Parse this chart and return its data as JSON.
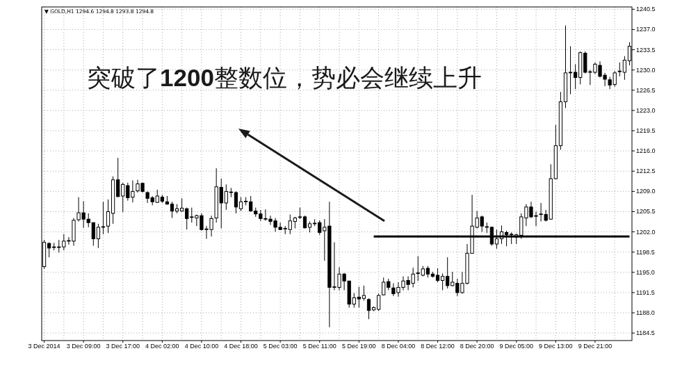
{
  "chart_data": {
    "type": "candlestick",
    "title": "▼ GOLD,H1 1294.6 1294.8 1293.8 1294.8",
    "annotations": [
      "突破了**1200**整数位，势必会继续上升"
    ],
    "categories": [
      "3 Dec 2014",
      null,
      null,
      null,
      null,
      null,
      null,
      null,
      "3 Dec 09:00",
      null,
      null,
      null,
      null,
      null,
      null,
      null,
      "3 Dec 17:00",
      null,
      null,
      null,
      null,
      null,
      null,
      null,
      "4 Dec 02:00",
      null,
      null,
      null,
      null,
      null,
      null,
      null,
      "4 Dec 10:00",
      null,
      null,
      null,
      null,
      null,
      null,
      null,
      "4 Dec 18:00",
      null,
      null,
      null,
      null,
      null,
      null,
      null,
      "5 Dec 03:00",
      null,
      null,
      null,
      null,
      null,
      null,
      null,
      "5 Dec 11:00",
      null,
      null,
      null,
      null,
      null,
      null,
      null,
      "5 Dec 19:00",
      null,
      null,
      null,
      null,
      null,
      null,
      null,
      "8 Dec 04:00",
      null,
      null,
      null,
      null,
      null,
      null,
      null,
      "8 Dec 12:00",
      null,
      null,
      null,
      null,
      null,
      null,
      null,
      "8 Dec 20:00",
      null,
      null,
      null,
      null,
      null,
      null,
      null,
      "9 Dec 05:00",
      null,
      null,
      null,
      null,
      null,
      null,
      null,
      "9 Dec 13:00",
      null,
      null,
      null,
      null,
      null,
      null,
      null,
      "9 Dec 21:00",
      null,
      null,
      null,
      null,
      null,
      null,
      null
    ],
    "series": [
      {
        "type": "candlestick",
        "color": "#000000",
        "ohlc": [
          [
            1196.0,
            1200.6,
            1195.6,
            1200.2
          ],
          [
            1200.0,
            1200.2,
            1197.6,
            1199.2
          ],
          [
            1199.4,
            1200.1,
            1198.8,
            1199.3
          ],
          [
            1199.3,
            1200.6,
            1198.4,
            1199.4
          ],
          [
            1199.4,
            1201.6,
            1198.8,
            1200.4
          ],
          [
            1200.4,
            1201.1,
            1199.8,
            1200.5
          ],
          [
            1200.4,
            1204.4,
            1199.6,
            1204.0
          ],
          [
            1204.1,
            1208.0,
            1203.8,
            1205.3
          ],
          [
            1205.3,
            1207.3,
            1202.7,
            1204.2
          ],
          [
            1204.2,
            1205.2,
            1202.8,
            1203.6
          ],
          [
            1203.6,
            1203.6,
            1199.6,
            1200.8
          ],
          [
            1200.8,
            1203.4,
            1199.2,
            1202.8
          ],
          [
            1202.8,
            1207.2,
            1201.6,
            1202.9
          ],
          [
            1203.0,
            1207.6,
            1201.8,
            1205.5
          ],
          [
            1205.2,
            1211.6,
            1203.4,
            1211.0
          ],
          [
            1211.0,
            1214.8,
            1208.0,
            1208.1
          ],
          [
            1208.2,
            1210.5,
            1205.4,
            1210.2
          ],
          [
            1210.0,
            1210.5,
            1207.4,
            1207.9
          ],
          [
            1208.0,
            1210.9,
            1207.1,
            1209.0
          ],
          [
            1209.1,
            1211.0,
            1208.8,
            1210.3
          ],
          [
            1210.4,
            1210.5,
            1208.8,
            1209.0
          ],
          [
            1208.8,
            1209.0,
            1207.0,
            1207.8
          ],
          [
            1207.9,
            1208.2,
            1206.6,
            1207.2
          ],
          [
            1207.1,
            1209.3,
            1207.0,
            1208.2
          ],
          [
            1208.0,
            1208.4,
            1207.0,
            1207.3
          ],
          [
            1207.2,
            1208.2,
            1206.7,
            1206.8
          ],
          [
            1206.8,
            1207.2,
            1204.4,
            1205.6
          ],
          [
            1205.6,
            1206.8,
            1205.2,
            1206.0
          ],
          [
            1205.6,
            1207.8,
            1205.5,
            1206.1
          ],
          [
            1206.0,
            1206.2,
            1202.4,
            1204.3
          ],
          [
            1204.6,
            1206.2,
            1203.6,
            1204.5
          ],
          [
            1204.4,
            1205.0,
            1203.0,
            1204.8
          ],
          [
            1204.8,
            1205.2,
            1202.2,
            1202.4
          ],
          [
            1202.4,
            1203.0,
            1200.8,
            1202.5
          ],
          [
            1202.4,
            1204.8,
            1201.2,
            1204.3
          ],
          [
            1204.4,
            1213.0,
            1203.6,
            1209.8
          ],
          [
            1209.7,
            1211.2,
            1202.6,
            1207.0
          ],
          [
            1207.0,
            1210.2,
            1205.8,
            1209.0
          ],
          [
            1208.8,
            1209.6,
            1208.0,
            1208.9
          ],
          [
            1208.8,
            1209.0,
            1205.2,
            1206.3
          ],
          [
            1206.0,
            1208.0,
            1205.6,
            1207.2
          ],
          [
            1207.2,
            1208.0,
            1206.6,
            1207.3
          ],
          [
            1207.2,
            1208.2,
            1205.5,
            1205.6
          ],
          [
            1205.6,
            1206.2,
            1204.6,
            1205.1
          ],
          [
            1205.1,
            1205.8,
            1203.9,
            1204.3
          ],
          [
            1204.3,
            1205.9,
            1203.9,
            1204.2
          ],
          [
            1204.2,
            1204.8,
            1203.2,
            1203.8
          ],
          [
            1203.9,
            1204.4,
            1202.0,
            1202.8
          ],
          [
            1202.8,
            1203.6,
            1202.3,
            1202.4
          ],
          [
            1202.5,
            1203.0,
            1201.6,
            1202.6
          ],
          [
            1202.4,
            1205.0,
            1201.6,
            1203.9
          ],
          [
            1203.8,
            1204.6,
            1202.6,
            1204.4
          ],
          [
            1204.5,
            1206.2,
            1204.2,
            1204.6
          ],
          [
            1204.6,
            1204.8,
            1202.6,
            1202.7
          ],
          [
            1202.8,
            1203.8,
            1201.9,
            1203.4
          ],
          [
            1203.5,
            1204.2,
            1203.0,
            1203.4
          ],
          [
            1203.6,
            1204.0,
            1201.5,
            1201.9
          ],
          [
            1202.2,
            1204.2,
            1197.0,
            1202.8
          ],
          [
            1203.0,
            1207.2,
            1185.5,
            1192.4
          ],
          [
            1192.4,
            1200.2,
            1191.9,
            1192.5
          ],
          [
            1192.4,
            1195.9,
            1191.9,
            1194.7
          ],
          [
            1194.7,
            1194.9,
            1191.9,
            1193.5
          ],
          [
            1193.5,
            1193.5,
            1188.9,
            1189.5
          ],
          [
            1189.5,
            1191.4,
            1188.9,
            1190.6
          ],
          [
            1190.7,
            1192.5,
            1188.9,
            1190.4
          ],
          [
            1190.5,
            1192.7,
            1190.1,
            1191.0
          ],
          [
            1190.3,
            1190.5,
            1186.9,
            1188.4
          ],
          [
            1188.5,
            1189.1,
            1188.3,
            1188.9
          ],
          [
            1188.6,
            1191.3,
            1188.3,
            1191.0
          ],
          [
            1191.1,
            1194.1,
            1191.0,
            1193.3
          ],
          [
            1193.4,
            1193.9,
            1191.9,
            1192.4
          ],
          [
            1192.3,
            1193.1,
            1190.9,
            1191.3
          ],
          [
            1191.5,
            1193.3,
            1190.8,
            1192.4
          ],
          [
            1192.4,
            1194.3,
            1191.9,
            1193.5
          ],
          [
            1193.6,
            1194.3,
            1191.9,
            1192.9
          ],
          [
            1193.1,
            1195.8,
            1192.4,
            1194.7
          ],
          [
            1194.8,
            1197.8,
            1193.5,
            1194.9
          ],
          [
            1194.5,
            1196.1,
            1194.3,
            1195.6
          ],
          [
            1195.7,
            1196.1,
            1194.1,
            1194.7
          ],
          [
            1194.7,
            1195.1,
            1194.1,
            1194.3
          ],
          [
            1194.5,
            1195.7,
            1193.3,
            1193.6
          ],
          [
            1193.6,
            1194.8,
            1191.9,
            1194.3
          ],
          [
            1194.3,
            1197.6,
            1192.2,
            1192.7
          ],
          [
            1192.7,
            1195.1,
            1192.6,
            1193.3
          ],
          [
            1193.1,
            1193.9,
            1190.9,
            1191.5
          ],
          [
            1191.5,
            1195.1,
            1191.3,
            1193.1
          ],
          [
            1193.1,
            1199.9,
            1192.9,
            1198.3
          ],
          [
            1198.3,
            1208.4,
            1198.2,
            1203.0
          ],
          [
            1202.8,
            1205.6,
            1202.6,
            1204.4
          ],
          [
            1204.6,
            1204.8,
            1202.0,
            1203.0
          ],
          [
            1202.9,
            1203.6,
            1201.8,
            1202.8
          ],
          [
            1202.8,
            1202.9,
            1199.6,
            1199.9
          ],
          [
            1199.9,
            1202.4,
            1199.1,
            1200.8
          ],
          [
            1200.8,
            1203.1,
            1199.9,
            1202.0
          ],
          [
            1201.9,
            1202.2,
            1199.5,
            1201.5
          ],
          [
            1201.6,
            1201.9,
            1199.9,
            1201.5
          ],
          [
            1201.1,
            1201.7,
            1199.9,
            1201.5
          ],
          [
            1201.4,
            1205.2,
            1200.8,
            1204.6
          ],
          [
            1204.4,
            1206.8,
            1203.0,
            1206.3
          ],
          [
            1206.3,
            1207.2,
            1204.4,
            1204.6
          ],
          [
            1204.8,
            1205.5,
            1203.0,
            1204.7
          ],
          [
            1205.0,
            1207.0,
            1203.8,
            1205.1
          ],
          [
            1205.0,
            1205.8,
            1203.8,
            1204.0
          ],
          [
            1204.2,
            1213.7,
            1204.1,
            1211.2
          ],
          [
            1211.2,
            1220.5,
            1211.1,
            1216.9
          ],
          [
            1216.9,
            1226.2,
            1216.2,
            1224.5
          ],
          [
            1224.5,
            1237.7,
            1223.4,
            1229.5
          ],
          [
            1229.5,
            1234.1,
            1225.8,
            1229.6
          ],
          [
            1229.6,
            1231.0,
            1226.7,
            1228.7
          ],
          [
            1228.7,
            1233.2,
            1227.5,
            1233.0
          ],
          [
            1232.9,
            1233.2,
            1229.4,
            1229.6
          ],
          [
            1229.6,
            1230.0,
            1227.4,
            1229.7
          ],
          [
            1229.6,
            1231.3,
            1229.3,
            1231.0
          ],
          [
            1230.8,
            1231.5,
            1228.7,
            1228.9
          ],
          [
            1229.1,
            1229.5,
            1227.2,
            1228.4
          ],
          [
            1228.3,
            1228.8,
            1226.7,
            1227.4
          ],
          [
            1227.5,
            1229.8,
            1227.1,
            1229.5
          ],
          [
            1229.7,
            1231.3,
            1228.9,
            1229.8
          ],
          [
            1229.6,
            1232.4,
            1228.3,
            1231.7
          ],
          [
            1231.6,
            1234.8,
            1230.8,
            1234.1
          ]
        ]
      },
      {
        "type": "line",
        "color": "#000000",
        "values": [
          null,
          null,
          null,
          null,
          null,
          null,
          null,
          null,
          null,
          null,
          null,
          null,
          null,
          null,
          null,
          null,
          null,
          null,
          null,
          null,
          null,
          null,
          null,
          null,
          null,
          null,
          null,
          null,
          null,
          null,
          null,
          null,
          null,
          null,
          null,
          null,
          null,
          null,
          null,
          null,
          null,
          null,
          null,
          null,
          null,
          null,
          null,
          null,
          null,
          null,
          null,
          null,
          null,
          null,
          null,
          null,
          null,
          null,
          null,
          null,
          null,
          null,
          null,
          null,
          null,
          null,
          null,
          1201.2,
          1201.2,
          1201.2,
          1201.2,
          1201.2,
          1201.2,
          1201.2,
          1201.2,
          1201.2,
          1201.2,
          1201.2,
          1201.2,
          1201.2,
          1201.2,
          1201.2,
          1201.2,
          1201.2,
          1201.2,
          1201.2,
          1201.2,
          1201.2,
          1201.2,
          1201.2,
          1201.2,
          1201.2,
          1201.2,
          1201.2,
          1201.2,
          1201.2,
          1201.2,
          1201.2,
          1201.2,
          1201.2,
          1201.2,
          1201.2,
          1201.2,
          1201.2,
          1201.2,
          1201.2,
          1201.2,
          1201.2,
          1201.2,
          1201.2,
          1201.2,
          1201.2,
          1201.2,
          1201.2,
          1201.2,
          1201.2,
          1201.2,
          1201.2,
          1201.2,
          1201.2
        ]
      }
    ],
    "ylim": [
      1183.2,
      1240.9
    ],
    "yticks": [
      1184.5,
      {
        "value": 1188,
        "label": "1188.0"
      },
      1191.5,
      {
        "value": 1195,
        "label": "1195.0"
      },
      1198.5,
      {
        "value": 1202,
        "label": "1202.0"
      },
      1205.5,
      {
        "value": 1209,
        "label": "1209.0"
      },
      1212.5,
      {
        "value": 1216,
        "label": "1216.0"
      },
      1219.5,
      {
        "value": 1223,
        "label": "1223.0"
      },
      1226.5,
      {
        "value": 1230,
        "label": "1230.0"
      },
      1233.5,
      {
        "value": 1237,
        "label": "1237.0"
      },
      1240.5
    ],
    "grid": true
  }
}
